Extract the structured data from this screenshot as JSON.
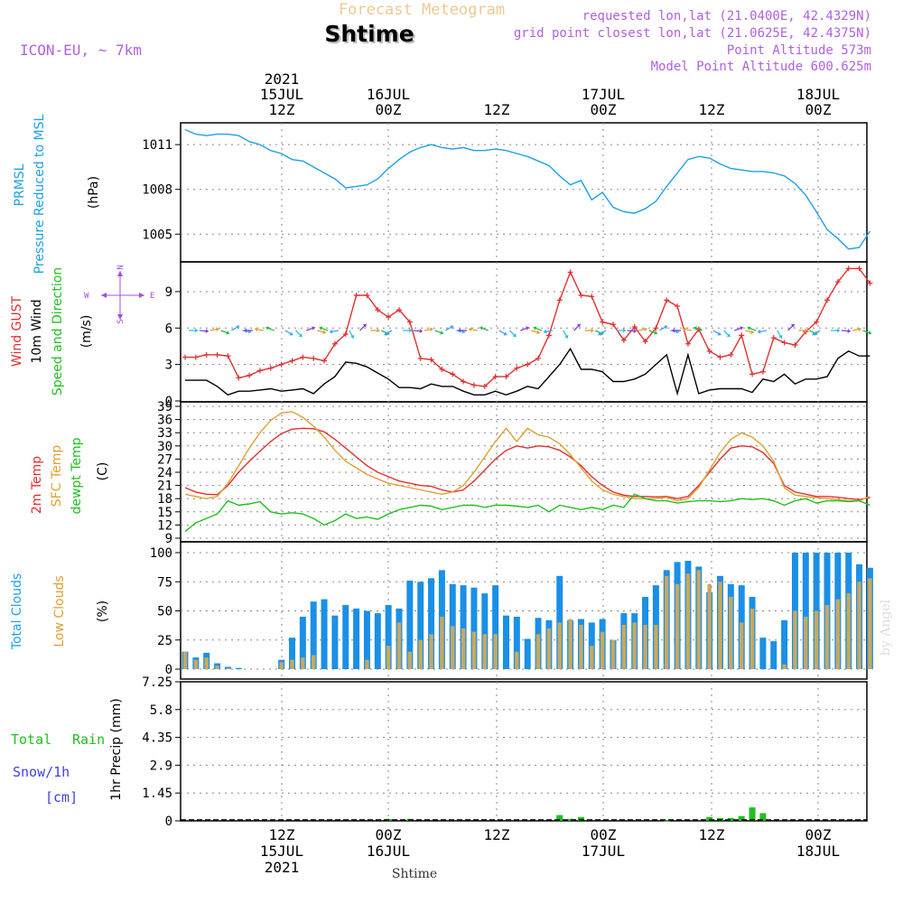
{
  "header": {
    "forecast_title": "Forecast Meteogram",
    "location": "Shtime",
    "model": "ICON-EU, ~ 7km",
    "requested": "requested lon,lat (21.0400E, 42.4329N)",
    "grid_point": "grid point closest lon,lat (21.0625E, 42.4375N)",
    "point_altitude": "Point Altitude 573m",
    "model_altitude": "Model Point Altitude 600.625m",
    "footer_location": "Shtime",
    "watermark": "by Angel"
  },
  "time_axis": {
    "top": [
      {
        "l1": "2021",
        "l2": "15JUL",
        "l3": "12Z"
      },
      {
        "l1": "",
        "l2": "16JUL",
        "l3": "00Z"
      },
      {
        "l1": "",
        "l2": "",
        "l3": "12Z"
      },
      {
        "l1": "",
        "l2": "17JUL",
        "l3": "00Z"
      },
      {
        "l1": "",
        "l2": "",
        "l3": "12Z"
      },
      {
        "l1": "",
        "l2": "18JUL",
        "l3": "00Z"
      }
    ],
    "bottom": [
      {
        "l1": "12Z",
        "l2": "15JUL",
        "l3": "2021"
      },
      {
        "l1": "00Z",
        "l2": "16JUL",
        "l3": ""
      },
      {
        "l1": "12Z",
        "l2": "",
        "l3": ""
      },
      {
        "l1": "00Z",
        "l2": "17JUL",
        "l3": ""
      },
      {
        "l1": "12Z",
        "l2": "",
        "l3": ""
      },
      {
        "l1": "00Z",
        "l2": "18JUL",
        "l3": ""
      }
    ]
  },
  "colors": {
    "pressure": "#1ea0e6",
    "gust": "#e03030",
    "wind": "#000000",
    "t2m": "#e03030",
    "sfc": "#e0a030",
    "dewpt": "#20c020",
    "total_cloud": "#1a90e6",
    "low_cloud": "#c8a860",
    "rain": "#20c020",
    "snow_label": "#4040e0",
    "rain_label": "#20c020",
    "compass": "#a050e0",
    "header_purple": "#b060e0",
    "forecast_title": "#f0c890"
  },
  "panels": {
    "pressure": {
      "label1": "PRMSL",
      "label2": "Pressure Reduced to MSL",
      "unit": "(hPa)"
    },
    "wind": {
      "label_gust": "Wind GUST",
      "label_wind": "10m Wind",
      "label_dir": "Speed and Direction",
      "unit": "(m/s)",
      "compass_n": "N",
      "compass_s": "S",
      "compass_w": "W",
      "compass_e": "E"
    },
    "temp": {
      "label1": "2m Temp",
      "label2": "SFC Temp",
      "label3": "dewpt Temp",
      "unit": "(C)"
    },
    "cloud": {
      "label1": "Total Clouds",
      "label2": "Low Clouds",
      "unit": "(%)"
    },
    "precip": {
      "label_total": "Total",
      "label_rain": "Rain",
      "label_snow": "Snow/1h",
      "label_cm": "[cm]",
      "unit": "1hr Precip (mm)"
    }
  },
  "chart_data": [
    {
      "type": "line",
      "title": "PRMSL Pressure Reduced to MSL",
      "ylabel": "(hPa)",
      "ylim": [
        1003.2,
        1012.4
      ],
      "yticks": [
        "1005",
        "1008",
        "1011"
      ],
      "x_hours": [
        0,
        1,
        2,
        3,
        4,
        5,
        6,
        7,
        8,
        9,
        10,
        11,
        12,
        13,
        14,
        15,
        16,
        17,
        18,
        19,
        20,
        21,
        22,
        23,
        24,
        25,
        26,
        27,
        28,
        29,
        30,
        31,
        32,
        33,
        34,
        35,
        36,
        37,
        38,
        39,
        40,
        41,
        42,
        43,
        44,
        45,
        46,
        47,
        48,
        49,
        50,
        51,
        52,
        53,
        54,
        55,
        56,
        57,
        58,
        59,
        60,
        61,
        62,
        63,
        64
      ],
      "series": [
        {
          "name": "PRMSL",
          "values": [
            1012.0,
            1011.7,
            1011.6,
            1011.7,
            1011.7,
            1011.6,
            1011.2,
            1011.0,
            1010.6,
            1010.4,
            1010.0,
            1009.9,
            1009.5,
            1009.1,
            1008.7,
            1008.1,
            1008.2,
            1008.3,
            1008.7,
            1009.4,
            1010.0,
            1010.5,
            1010.8,
            1011.0,
            1010.8,
            1010.7,
            1010.8,
            1010.6,
            1010.6,
            1010.7,
            1010.6,
            1010.4,
            1010.2,
            1009.9,
            1009.6,
            1008.9,
            1008.3,
            1008.6,
            1007.3,
            1007.8,
            1006.8,
            1006.5,
            1006.4,
            1006.7,
            1007.2,
            1008.2,
            1009.1,
            1010.0,
            1010.2,
            1010.1,
            1009.7,
            1009.4,
            1009.3,
            1009.2,
            1009.2,
            1009.1,
            1008.9,
            1008.4,
            1007.6,
            1006.5,
            1005.3,
            1004.7,
            1004.0,
            1004.1,
            1005.2
          ]
        }
      ]
    },
    {
      "type": "line",
      "title": "Wind GUST / 10m Wind Speed and Direction",
      "ylabel": "(m/s)",
      "ylim": [
        0,
        11.3
      ],
      "yticks": [
        "0",
        "3",
        "6",
        "9"
      ],
      "x_hours": [
        0,
        1,
        2,
        3,
        4,
        5,
        6,
        7,
        8,
        9,
        10,
        11,
        12,
        13,
        14,
        15,
        16,
        17,
        18,
        19,
        20,
        21,
        22,
        23,
        24,
        25,
        26,
        27,
        28,
        29,
        30,
        31,
        32,
        33,
        34,
        35,
        36,
        37,
        38,
        39,
        40,
        41,
        42,
        43,
        44,
        45,
        46,
        47,
        48,
        49,
        50,
        51,
        52,
        53,
        54,
        55,
        56,
        57,
        58,
        59,
        60,
        61,
        62,
        63,
        64
      ],
      "series": [
        {
          "name": "Wind GUST",
          "values": [
            3.6,
            3.6,
            3.8,
            3.8,
            3.7,
            1.9,
            2.1,
            2.5,
            2.7,
            3.0,
            3.3,
            3.6,
            3.5,
            3.3,
            4.7,
            5.5,
            8.7,
            8.7,
            7.5,
            6.9,
            7.5,
            6.5,
            3.5,
            3.4,
            2.6,
            2.2,
            1.6,
            1.3,
            1.2,
            2.0,
            2.0,
            2.7,
            3.0,
            3.5,
            5.4,
            8.3,
            10.6,
            8.7,
            8.6,
            6.5,
            6.3,
            5.0,
            6.1,
            4.9,
            6.0,
            8.3,
            7.8,
            4.7,
            5.9,
            4.1,
            3.6,
            3.8,
            5.4,
            2.2,
            2.4,
            5.2,
            4.8,
            4.6,
            5.7,
            6.5,
            8.3,
            9.8,
            10.9,
            10.9,
            9.7
          ]
        },
        {
          "name": "10m Wind",
          "values": [
            1.7,
            1.7,
            1.7,
            1.2,
            0.5,
            0.8,
            0.8,
            0.9,
            1.0,
            0.8,
            0.9,
            1.0,
            0.6,
            1.4,
            2.0,
            3.2,
            3.1,
            2.8,
            2.3,
            1.8,
            1.1,
            1.1,
            1.0,
            1.4,
            1.2,
            1.2,
            0.8,
            0.5,
            0.5,
            0.8,
            0.5,
            0.8,
            1.2,
            1.0,
            2.0,
            3.0,
            4.3,
            2.6,
            2.6,
            2.4,
            1.6,
            1.6,
            1.8,
            2.2,
            3.0,
            3.8,
            0.6,
            3.8,
            0.6,
            0.9,
            1.0,
            1.0,
            1.0,
            0.7,
            1.8,
            1.6,
            2.2,
            1.4,
            1.8,
            1.8,
            2.0,
            3.5,
            4.1,
            3.7,
            3.7
          ]
        }
      ]
    },
    {
      "type": "line",
      "title": "2m Temp / SFC Temp / dewpt Temp",
      "ylabel": "(C)",
      "ylim": [
        9,
        39
      ],
      "yticks": [
        "9",
        "12",
        "15",
        "18",
        "21",
        "24",
        "27",
        "30",
        "33",
        "36",
        "39"
      ],
      "x_hours": [
        0,
        1,
        2,
        3,
        4,
        5,
        6,
        7,
        8,
        9,
        10,
        11,
        12,
        13,
        14,
        15,
        16,
        17,
        18,
        19,
        20,
        21,
        22,
        23,
        24,
        25,
        26,
        27,
        28,
        29,
        30,
        31,
        32,
        33,
        34,
        35,
        36,
        37,
        38,
        39,
        40,
        41,
        42,
        43,
        44,
        45,
        46,
        47,
        48,
        49,
        50,
        51,
        52,
        53,
        54,
        55,
        56,
        57,
        58,
        59,
        60,
        61,
        62,
        63,
        64
      ],
      "series": [
        {
          "name": "2m Temp",
          "values": [
            20.5,
            19.5,
            19.0,
            18.9,
            21.0,
            24.0,
            26.5,
            28.8,
            31.0,
            32.8,
            33.8,
            34.0,
            33.9,
            33.2,
            31.5,
            29.5,
            27.5,
            25.5,
            24.0,
            23.0,
            22.0,
            21.5,
            21.0,
            20.8,
            20.0,
            19.5,
            20.0,
            22.0,
            24.5,
            27.0,
            29.0,
            30.0,
            29.5,
            30.0,
            29.8,
            29.0,
            27.5,
            25.5,
            23.0,
            21.0,
            19.5,
            18.8,
            18.5,
            18.5,
            18.4,
            18.5,
            18.0,
            18.5,
            21.0,
            24.0,
            27.0,
            29.5,
            30.0,
            29.8,
            28.5,
            26.0,
            21.0,
            19.5,
            19.0,
            18.5,
            18.5,
            18.3,
            18.0,
            17.8,
            18.2
          ]
        },
        {
          "name": "SFC Temp",
          "values": [
            19.0,
            18.5,
            18.0,
            18.5,
            21.5,
            25.5,
            29.5,
            33.0,
            35.8,
            37.5,
            37.8,
            36.5,
            34.5,
            32.0,
            29.0,
            26.5,
            25.0,
            23.5,
            22.5,
            21.5,
            21.0,
            20.5,
            20.0,
            19.5,
            19.0,
            19.5,
            21.0,
            24.0,
            27.5,
            31.0,
            34.0,
            31.0,
            34.0,
            32.5,
            32.0,
            30.5,
            28.0,
            25.0,
            22.0,
            20.0,
            19.0,
            18.5,
            18.0,
            18.0,
            18.0,
            18.3,
            17.5,
            18.0,
            20.5,
            24.5,
            28.5,
            31.5,
            33.0,
            32.0,
            30.0,
            26.5,
            20.5,
            18.8,
            18.5,
            18.2,
            18.0,
            17.8,
            17.5,
            17.5,
            18.5
          ]
        },
        {
          "name": "dewpt Temp",
          "values": [
            10.5,
            12.5,
            13.5,
            14.5,
            17.5,
            16.5,
            16.8,
            17.3,
            15.0,
            14.5,
            14.8,
            14.5,
            13.5,
            12.0,
            13.0,
            14.5,
            13.5,
            13.8,
            13.3,
            14.5,
            15.5,
            16.0,
            16.5,
            16.3,
            15.5,
            16.0,
            16.5,
            16.5,
            16.0,
            16.5,
            16.5,
            16.3,
            16.0,
            16.5,
            15.0,
            16.5,
            16.0,
            15.5,
            16.0,
            15.5,
            16.5,
            16.0,
            19.0,
            18.0,
            17.5,
            17.5,
            17.0,
            17.3,
            17.5,
            17.5,
            17.3,
            17.5,
            18.0,
            17.8,
            18.0,
            17.5,
            16.5,
            17.5,
            18.0,
            17.0,
            17.5,
            17.5,
            17.3,
            17.5,
            16.5
          ]
        }
      ]
    },
    {
      "type": "bar",
      "title": "Total Clouds / Low Clouds",
      "ylabel": "(%)",
      "ylim": [
        0,
        100
      ],
      "yticks": [
        "0",
        "25",
        "50",
        "75",
        "100"
      ],
      "x_hours": [
        0,
        1,
        2,
        3,
        4,
        5,
        6,
        7,
        8,
        9,
        10,
        11,
        12,
        13,
        14,
        15,
        16,
        17,
        18,
        19,
        20,
        21,
        22,
        23,
        24,
        25,
        26,
        27,
        28,
        29,
        30,
        31,
        32,
        33,
        34,
        35,
        36,
        37,
        38,
        39,
        40,
        41,
        42,
        43,
        44,
        45,
        46,
        47,
        48,
        49,
        50,
        51,
        52,
        53,
        54,
        55,
        56,
        57,
        58,
        59,
        60,
        61,
        62,
        63,
        64
      ],
      "series": [
        {
          "name": "Total Clouds",
          "values": [
            15,
            10,
            14,
            5,
            2,
            1,
            0,
            0,
            0,
            8,
            27,
            45,
            58,
            60,
            46,
            55,
            52,
            50,
            48,
            55,
            52,
            76,
            75,
            78,
            85,
            73,
            72,
            70,
            65,
            72,
            46,
            45,
            26,
            44,
            42,
            80,
            42,
            43,
            40,
            43,
            25,
            48,
            48,
            62,
            72,
            85,
            92,
            93,
            88,
            66,
            80,
            73,
            72,
            62,
            27,
            24,
            42,
            100,
            100,
            100,
            100,
            100,
            100,
            90,
            87
          ]
        },
        {
          "name": "Low Clouds",
          "values": [
            15,
            8,
            10,
            3,
            1,
            0,
            0,
            0,
            0,
            6,
            8,
            10,
            12,
            0,
            0,
            0,
            0,
            8,
            0,
            20,
            40,
            15,
            25,
            30,
            45,
            37,
            35,
            32,
            30,
            30,
            0,
            15,
            0,
            30,
            35,
            40,
            43,
            38,
            20,
            32,
            25,
            38,
            40,
            38,
            38,
            80,
            73,
            82,
            85,
            73,
            75,
            62,
            40,
            52,
            0,
            0,
            4,
            50,
            45,
            50,
            55,
            60,
            65,
            75,
            78
          ]
        }
      ]
    },
    {
      "type": "bar",
      "title": "Total Rain Snow/1h [cm]",
      "ylabel": "1hr Precip (mm)",
      "ylim": [
        0,
        7.25
      ],
      "yticks": [
        "0",
        "1.45",
        "2.9",
        "4.35",
        "5.8",
        "7.25"
      ],
      "x_hours": [
        0,
        1,
        2,
        3,
        4,
        5,
        6,
        7,
        8,
        9,
        10,
        11,
        12,
        13,
        14,
        15,
        16,
        17,
        18,
        19,
        20,
        21,
        22,
        23,
        24,
        25,
        26,
        27,
        28,
        29,
        30,
        31,
        32,
        33,
        34,
        35,
        36,
        37,
        38,
        39,
        40,
        41,
        42,
        43,
        44,
        45,
        46,
        47,
        48,
        49,
        50,
        51,
        52,
        53,
        54,
        55,
        56,
        57,
        58,
        59,
        60,
        61,
        62,
        63,
        64
      ],
      "series": [
        {
          "name": "Total Rain",
          "values": [
            0,
            0,
            0,
            0,
            0,
            0,
            0,
            0,
            0,
            0,
            0,
            0,
            0,
            0,
            0,
            0,
            0,
            0,
            0,
            0.1,
            0,
            0.1,
            0,
            0,
            0,
            0,
            0,
            0,
            0,
            0,
            0,
            0,
            0,
            0,
            0,
            0.3,
            0.1,
            0.2,
            0,
            0,
            0,
            0,
            0,
            0,
            0,
            0.05,
            0,
            0,
            0,
            0.2,
            0.15,
            0.15,
            0.25,
            0.7,
            0.4,
            0,
            0,
            0,
            0,
            0,
            0,
            0,
            0,
            0,
            0
          ]
        }
      ]
    }
  ]
}
